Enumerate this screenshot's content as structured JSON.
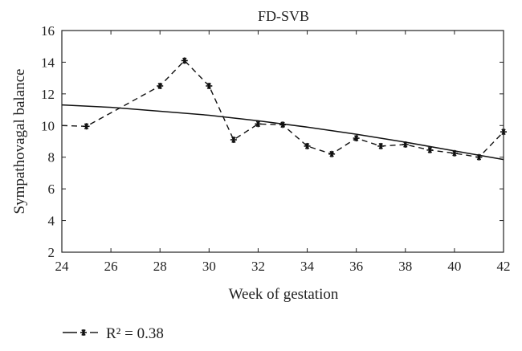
{
  "chart_data": {
    "type": "line",
    "title": "FD-SVB",
    "xlabel": "Week of gestation",
    "ylabel": "Sympathovagal balance",
    "xlim": [
      24,
      42
    ],
    "ylim": [
      2,
      16
    ],
    "xticks": [
      24,
      26,
      28,
      30,
      32,
      34,
      36,
      38,
      40,
      42
    ],
    "yticks": [
      2,
      4,
      6,
      8,
      10,
      12,
      14,
      16
    ],
    "grid": false,
    "legend": "bottom-left",
    "series": [
      {
        "name": "R² = 0.38",
        "style": "dashed-with-star-markers",
        "x": [
          24,
          25,
          28,
          29,
          30,
          31,
          32,
          33,
          34,
          35,
          36,
          37,
          38,
          39,
          40,
          41,
          42
        ],
        "y": [
          10.0,
          9.95,
          12.5,
          14.1,
          12.5,
          9.1,
          10.1,
          10.05,
          8.7,
          8.2,
          9.2,
          8.7,
          8.8,
          8.45,
          8.25,
          8.0,
          9.6
        ]
      },
      {
        "style": "solid-fit",
        "x": [
          24,
          26,
          28,
          30,
          32,
          34,
          36,
          38,
          40,
          42
        ],
        "y": [
          11.3,
          11.15,
          10.9,
          10.65,
          10.3,
          9.9,
          9.45,
          8.95,
          8.4,
          7.85
        ]
      }
    ]
  }
}
